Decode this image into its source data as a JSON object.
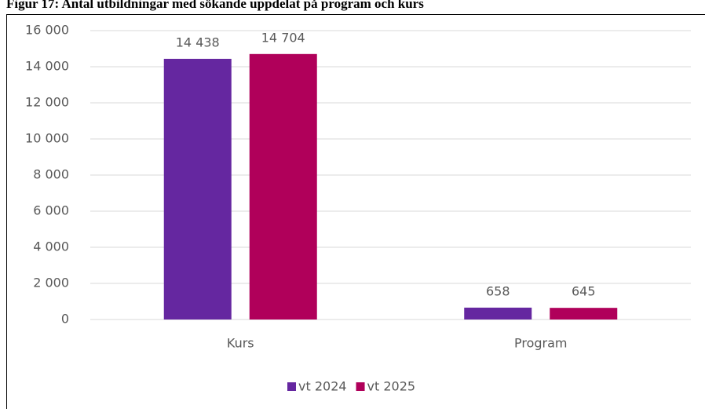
{
  "chart_data": {
    "type": "bar",
    "title": "Figur 17: Antal utbildningar med sökande uppdelat på program och kurs",
    "categories": [
      "Kurs",
      "Program"
    ],
    "series": [
      {
        "name": "vt 2024",
        "color": "#6527a0",
        "values": [
          14438,
          658
        ],
        "value_labels": [
          "14 438",
          "658"
        ]
      },
      {
        "name": "vt 2025",
        "color": "#b0005a",
        "values": [
          14704,
          645
        ],
        "value_labels": [
          "14 704",
          "645"
        ]
      }
    ],
    "ylim": [
      0,
      16000
    ],
    "yticks": [
      0,
      {
        "value": 2000,
        "label": "2 000"
      },
      {
        "value": 4000,
        "label": "4 000"
      },
      {
        "value": 6000,
        "label": "6 000"
      },
      {
        "value": 8000,
        "label": "8 000"
      },
      {
        "value": 10000,
        "label": "10 000"
      },
      {
        "value": 12000,
        "label": "12 000"
      },
      {
        "value": 14000,
        "label": "14 000"
      },
      {
        "value": 16000,
        "label": "16 000"
      }
    ],
    "grid": true,
    "legend": "bottom"
  }
}
